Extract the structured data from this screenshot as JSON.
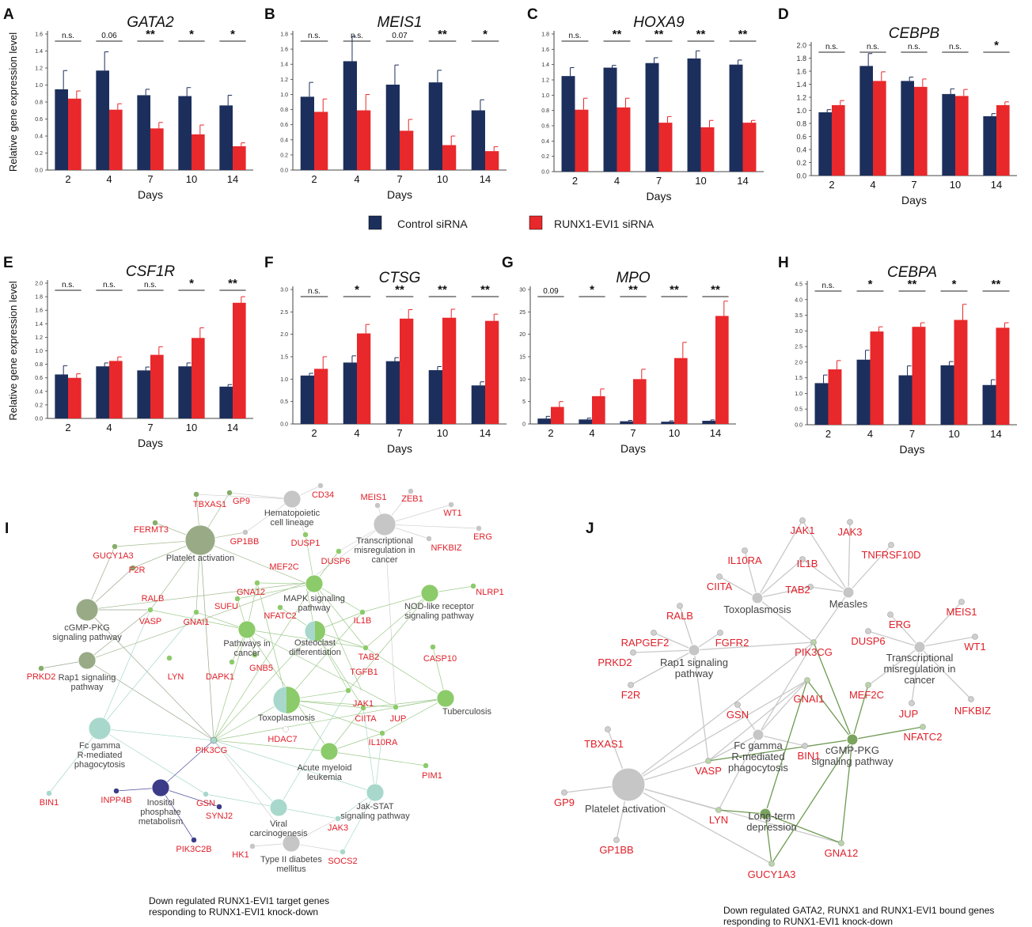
{
  "legend": {
    "control_label": "Control siRNA",
    "knockdown_label": "RUNX1-EVI1 siRNA",
    "control_color": "#1c2f5c",
    "knockdown_color": "#e8282b"
  },
  "ylabel": "Relative gene expression level",
  "chart_data": [
    {
      "panel": "A",
      "type": "bar",
      "title": "GATA2",
      "xlabel": "Days",
      "ylabel": "Relative gene expression level",
      "categories": [
        "2",
        "4",
        "7",
        "10",
        "14"
      ],
      "ylim": [
        0,
        1.6
      ],
      "yticks": [
        "0.0",
        "0.2",
        "0.4",
        "0.6",
        "0.8",
        "1.0",
        "1.2",
        "1.4",
        "1.6"
      ],
      "series": [
        {
          "name": "Control siRNA",
          "values": [
            0.95,
            1.17,
            0.88,
            0.87,
            0.76
          ],
          "errors": [
            0.22,
            0.22,
            0.07,
            0.1,
            0.12
          ]
        },
        {
          "name": "RUNX1-EVI1 siRNA",
          "values": [
            0.84,
            0.71,
            0.49,
            0.42,
            0.28
          ],
          "errors": [
            0.09,
            0.07,
            0.07,
            0.11,
            0.04
          ]
        }
      ],
      "significance": [
        "n.s.",
        "0.06",
        "**",
        "*",
        "*"
      ]
    },
    {
      "panel": "B",
      "type": "bar",
      "title": "MEIS1",
      "xlabel": "Days",
      "ylabel": "",
      "categories": [
        "2",
        "4",
        "7",
        "10",
        "14"
      ],
      "ylim": [
        0,
        1.8
      ],
      "yticks": [
        "0.0",
        "0.2",
        "0.4",
        "0.6",
        "0.8",
        "1.0",
        "1.2",
        "1.4",
        "1.6",
        "1.8"
      ],
      "series": [
        {
          "name": "Control siRNA",
          "values": [
            0.97,
            1.44,
            1.13,
            1.16,
            0.79
          ],
          "errors": [
            0.19,
            0.33,
            0.26,
            0.16,
            0.14
          ]
        },
        {
          "name": "RUNX1-EVI1 siRNA",
          "values": [
            0.77,
            0.79,
            0.52,
            0.33,
            0.25
          ],
          "errors": [
            0.17,
            0.21,
            0.15,
            0.12,
            0.06
          ]
        }
      ],
      "significance": [
        "n.s.",
        "n.s.",
        "0.07",
        "**",
        "*"
      ]
    },
    {
      "panel": "C",
      "type": "bar",
      "title": "HOXA9",
      "xlabel": "Days",
      "ylabel": "",
      "categories": [
        "2",
        "4",
        "7",
        "10",
        "14"
      ],
      "ylim": [
        0,
        1.8
      ],
      "yticks": [
        "0.0",
        "0.2",
        "0.4",
        "0.6",
        "0.8",
        "1.0",
        "1.2",
        "1.4",
        "1.6",
        "1.8"
      ],
      "series": [
        {
          "name": "Control siRNA",
          "values": [
            1.25,
            1.36,
            1.42,
            1.48,
            1.4
          ],
          "errors": [
            0.11,
            0.03,
            0.07,
            0.1,
            0.06
          ]
        },
        {
          "name": "RUNX1-EVI1 siRNA",
          "values": [
            0.81,
            0.84,
            0.64,
            0.58,
            0.64
          ],
          "errors": [
            0.15,
            0.12,
            0.08,
            0.09,
            0.03
          ]
        }
      ],
      "significance": [
        "n.s.",
        "**",
        "**",
        "**",
        "**"
      ]
    },
    {
      "panel": "D",
      "type": "bar",
      "title": "CEBPB",
      "xlabel": "Days",
      "ylabel": "",
      "categories": [
        "2",
        "4",
        "7",
        "10",
        "14"
      ],
      "ylim": [
        0,
        2.0
      ],
      "yticks": [
        "0.0",
        "0.2",
        "0.4",
        "0.6",
        "0.8",
        "1.0",
        "1.2",
        "1.4",
        "1.6",
        "1.8",
        "2.0"
      ],
      "series": [
        {
          "name": "Control siRNA",
          "values": [
            0.97,
            1.68,
            1.45,
            1.25,
            0.91
          ],
          "errors": [
            0.04,
            0.19,
            0.06,
            0.08,
            0.04
          ]
        },
        {
          "name": "RUNX1-EVI1 siRNA",
          "values": [
            1.08,
            1.45,
            1.36,
            1.22,
            1.08
          ],
          "errors": [
            0.07,
            0.14,
            0.12,
            0.1,
            0.05
          ]
        }
      ],
      "significance": [
        "n.s.",
        "n.s.",
        "n.s.",
        "n.s.",
        "*"
      ]
    },
    {
      "panel": "E",
      "type": "bar",
      "title": "CSF1R",
      "xlabel": "Days",
      "ylabel": "Relative gene expression level",
      "categories": [
        "2",
        "4",
        "7",
        "10",
        "14"
      ],
      "ylim": [
        0,
        2.0
      ],
      "yticks": [
        "0.0",
        "0.2",
        "0.4",
        "0.6",
        "0.8",
        "1.0",
        "1.2",
        "1.4",
        "1.6",
        "1.8",
        "2.0"
      ],
      "series": [
        {
          "name": "Control siRNA",
          "values": [
            0.65,
            0.77,
            0.71,
            0.77,
            0.47
          ],
          "errors": [
            0.13,
            0.05,
            0.05,
            0.05,
            0.03
          ]
        },
        {
          "name": "RUNX1-EVI1 siRNA",
          "values": [
            0.6,
            0.85,
            0.94,
            1.19,
            1.71
          ],
          "errors": [
            0.06,
            0.06,
            0.12,
            0.15,
            0.09
          ]
        }
      ],
      "significance": [
        "n.s.",
        "n.s.",
        "n.s.",
        "*",
        "**"
      ]
    },
    {
      "panel": "F",
      "type": "bar",
      "title": "CTSG",
      "xlabel": "Days",
      "ylabel": "",
      "categories": [
        "2",
        "4",
        "7",
        "10",
        "14"
      ],
      "ylim": [
        0,
        3.0
      ],
      "yticks": [
        "0.0",
        "0.5",
        "1.0",
        "1.5",
        "2.0",
        "2.5",
        "3.0"
      ],
      "series": [
        {
          "name": "Control siRNA",
          "values": [
            1.08,
            1.37,
            1.4,
            1.2,
            0.86
          ],
          "errors": [
            0.05,
            0.15,
            0.08,
            0.08,
            0.08
          ]
        },
        {
          "name": "RUNX1-EVI1 siRNA",
          "values": [
            1.23,
            2.02,
            2.35,
            2.37,
            2.3
          ],
          "errors": [
            0.27,
            0.2,
            0.2,
            0.19,
            0.15
          ]
        }
      ],
      "significance": [
        "n.s.",
        "*",
        "**",
        "**",
        "**"
      ]
    },
    {
      "panel": "G",
      "type": "bar",
      "title": "MPO",
      "xlabel": "Days",
      "ylabel": "",
      "categories": [
        "2",
        "4",
        "7",
        "10",
        "14"
      ],
      "ylim": [
        0,
        30
      ],
      "yticks": [
        "0",
        "5",
        "10",
        "15",
        "20",
        "25",
        "30"
      ],
      "series": [
        {
          "name": "Control siRNA",
          "values": [
            1.2,
            1.0,
            0.6,
            0.5,
            0.7
          ],
          "errors": [
            0.5,
            0.3,
            0.2,
            0.2,
            0.2
          ]
        },
        {
          "name": "RUNX1-EVI1 siRNA",
          "values": [
            3.8,
            6.2,
            10.0,
            14.7,
            24.1
          ],
          "errors": [
            1.2,
            1.6,
            2.2,
            3.5,
            3.3
          ]
        }
      ],
      "significance": [
        "0.09",
        "*",
        "**",
        "**",
        "**"
      ]
    },
    {
      "panel": "H",
      "type": "bar",
      "title": "CEBPA",
      "xlabel": "Days",
      "ylabel": "",
      "categories": [
        "2",
        "4",
        "7",
        "10",
        "14"
      ],
      "ylim": [
        0,
        4.5
      ],
      "yticks": [
        "0.0",
        "0.5",
        "1.0",
        "1.5",
        "2.0",
        "2.5",
        "3.0",
        "3.5",
        "4.0",
        "4.5"
      ],
      "series": [
        {
          "name": "Control siRNA",
          "values": [
            1.33,
            2.08,
            1.58,
            1.9,
            1.27
          ],
          "errors": [
            0.26,
            0.3,
            0.3,
            0.12,
            0.17
          ]
        },
        {
          "name": "RUNX1-EVI1 siRNA",
          "values": [
            1.77,
            2.98,
            3.13,
            3.35,
            3.1
          ],
          "errors": [
            0.28,
            0.15,
            0.13,
            0.5,
            0.16
          ]
        }
      ],
      "significance": [
        "n.s.",
        "*",
        "**",
        "*",
        "**"
      ]
    }
  ],
  "networks": {
    "I": {
      "caption": [
        "Down regulated RUNX1-EVI1 target genes",
        "responding to RUNX1-EVI1 knock-down"
      ],
      "pathways": [
        "Platelet activation",
        "Hematopoietic cell lineage",
        "Transcriptional misregulation in cancer",
        "MAPK signaling pathway",
        "NOD-like receptor signaling pathway",
        "cGMP-PKG signaling pathway",
        "Pathways in cancer",
        "Osteoclast differentiation",
        "Rap1 signaling pathway",
        "Toxoplasmosis",
        "Tuberculosis",
        "Fc gamma R-mediated phagocytosis",
        "Acute myeloid leukemia",
        "Inositol phosphate metabolism",
        "Viral carcinogenesis",
        "Jak-STAT signaling pathway",
        "Type II diabetes mellitus"
      ],
      "genes": [
        "TBXAS1",
        "GP9",
        "CD34",
        "MEIS1",
        "ZEB1",
        "WT1",
        "FERMT3",
        "GP1BB",
        "DUSP1",
        "NFKBIZ",
        "ERG",
        "GUCY1A3",
        "F2R",
        "MEF2C",
        "DUSP6",
        "NLRP1",
        "GNA12",
        "SUFU",
        "NFATC2",
        "IL1B",
        "RALB",
        "VASP",
        "GNAI1",
        "TAB2",
        "CASP10",
        "LYN",
        "DAPK1",
        "GNB5",
        "TGFB1",
        "PRKD2",
        "JAK1",
        "CIITA",
        "JUP",
        "HDAC7",
        "IL10RA",
        "PIK3CG",
        "BIN1",
        "GSN",
        "PIM1",
        "INPP4B",
        "SYNJ2",
        "JAK3",
        "HK1",
        "SOCS2",
        "PIK3C2B"
      ]
    },
    "J": {
      "caption": [
        "Down regulated GATA2, RUNX1 and RUNX1-EVI1 bound genes",
        "responding to RUNX1-EVI1 knock-down"
      ],
      "pathways": [
        "Toxoplasmosis",
        "Measles",
        "Rap1 signaling pathway",
        "Transcriptional misregulation in cancer",
        "Fc gamma R-mediated phagocytosis",
        "Platelet activation",
        "cGMP-PKG signaling pathway",
        "Long-term depression"
      ],
      "genes": [
        "JAK1",
        "JAK3",
        "IL10RA",
        "IL1B",
        "TNFRSF10D",
        "CIITA",
        "TAB2",
        "MEIS1",
        "RALB",
        "ERG",
        "WT1",
        "RAPGEF2",
        "FGFR2",
        "DUSP6",
        "PRKD2",
        "PIK3CG",
        "F2R",
        "MEF2C",
        "GSN",
        "GNAI1",
        "JUP",
        "NFKBIZ",
        "TBXAS1",
        "BIN1",
        "NFATC2",
        "GP9",
        "VASP",
        "GP1BB",
        "LYN",
        "GNA12",
        "GUCY1A3"
      ]
    }
  },
  "panel_letters": {
    "I": "I",
    "J": "J"
  }
}
